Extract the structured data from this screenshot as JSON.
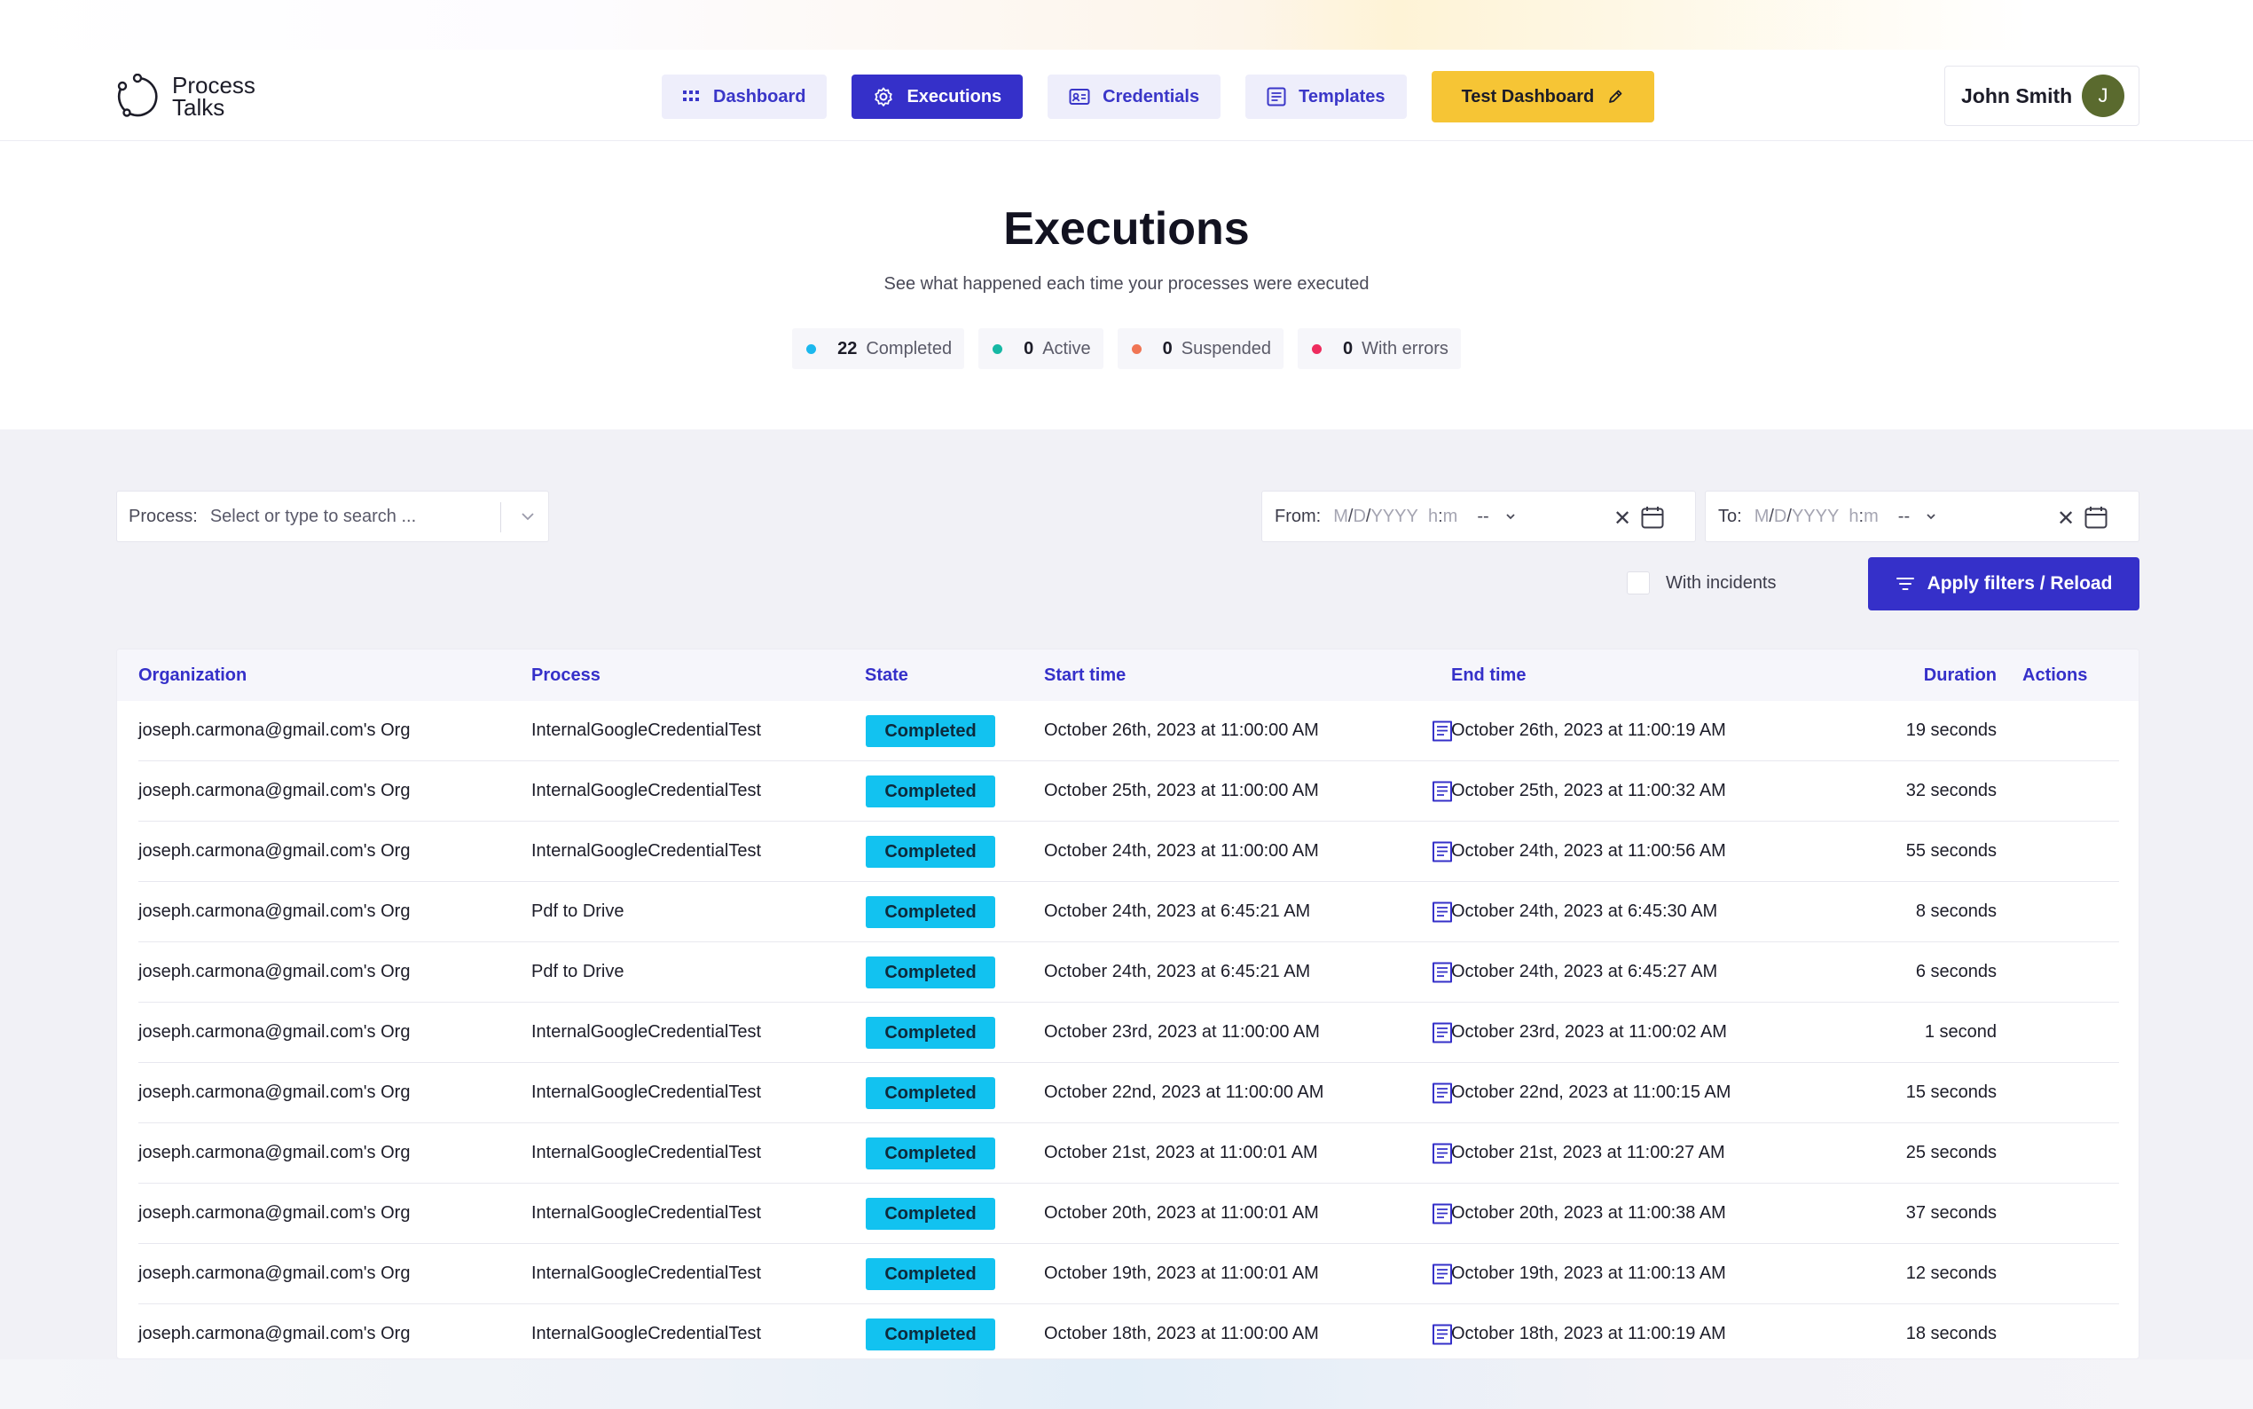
{
  "brand": {
    "line1": "Process",
    "line2": "Talks"
  },
  "nav": {
    "dashboard": "Dashboard",
    "executions": "Executions",
    "credentials": "Credentials",
    "templates": "Templates",
    "test_dashboard": "Test Dashboard"
  },
  "user": {
    "name": "John Smith",
    "initial": "J"
  },
  "page": {
    "title": "Executions",
    "subtitle": "See what happened each time your processes were executed"
  },
  "stats": [
    {
      "count": "22",
      "label": "Completed",
      "color": "#1bb8ee"
    },
    {
      "count": "0",
      "label": "Active",
      "color": "#16b8a4"
    },
    {
      "count": "0",
      "label": "Suspended",
      "color": "#f07554"
    },
    {
      "count": "0",
      "label": "With errors",
      "color": "#ee2c5e"
    }
  ],
  "filters": {
    "process_label": "Process:",
    "process_placeholder": "Select or type to search ...",
    "from_label": "From:",
    "to_label": "To:",
    "date_format": {
      "m": "M",
      "d": "D",
      "y": "YYYY",
      "h": "h",
      "min": "m",
      "sep": "/",
      "colon": ":"
    },
    "ampm": "--",
    "with_incidents": "With incidents",
    "apply": "Apply filters / Reload"
  },
  "table": {
    "headers": {
      "organization": "Organization",
      "process": "Process",
      "state": "State",
      "start": "Start time",
      "end": "End time",
      "duration": "Duration",
      "actions": "Actions"
    },
    "rows": [
      {
        "org": "joseph.carmona@gmail.com's Org",
        "process": "InternalGoogleCredentialTest",
        "state": "Completed",
        "start": "October 26th, 2023 at 11:00:00 AM",
        "end": "October 26th, 2023 at 11:00:19 AM",
        "duration": "19 seconds"
      },
      {
        "org": "joseph.carmona@gmail.com's Org",
        "process": "InternalGoogleCredentialTest",
        "state": "Completed",
        "start": "October 25th, 2023 at 11:00:00 AM",
        "end": "October 25th, 2023 at 11:00:32 AM",
        "duration": "32 seconds"
      },
      {
        "org": "joseph.carmona@gmail.com's Org",
        "process": "InternalGoogleCredentialTest",
        "state": "Completed",
        "start": "October 24th, 2023 at 11:00:00 AM",
        "end": "October 24th, 2023 at 11:00:56 AM",
        "duration": "55 seconds"
      },
      {
        "org": "joseph.carmona@gmail.com's Org",
        "process": "Pdf to Drive",
        "state": "Completed",
        "start": "October 24th, 2023 at 6:45:21 AM",
        "end": "October 24th, 2023 at 6:45:30 AM",
        "duration": "8 seconds"
      },
      {
        "org": "joseph.carmona@gmail.com's Org",
        "process": "Pdf to Drive",
        "state": "Completed",
        "start": "October 24th, 2023 at 6:45:21 AM",
        "end": "October 24th, 2023 at 6:45:27 AM",
        "duration": "6 seconds"
      },
      {
        "org": "joseph.carmona@gmail.com's Org",
        "process": "InternalGoogleCredentialTest",
        "state": "Completed",
        "start": "October 23rd, 2023 at 11:00:00 AM",
        "end": "October 23rd, 2023 at 11:00:02 AM",
        "duration": "1 second"
      },
      {
        "org": "joseph.carmona@gmail.com's Org",
        "process": "InternalGoogleCredentialTest",
        "state": "Completed",
        "start": "October 22nd, 2023 at 11:00:00 AM",
        "end": "October 22nd, 2023 at 11:00:15 AM",
        "duration": "15 seconds"
      },
      {
        "org": "joseph.carmona@gmail.com's Org",
        "process": "InternalGoogleCredentialTest",
        "state": "Completed",
        "start": "October 21st, 2023 at 11:00:01 AM",
        "end": "October 21st, 2023 at 11:00:27 AM",
        "duration": "25 seconds"
      },
      {
        "org": "joseph.carmona@gmail.com's Org",
        "process": "InternalGoogleCredentialTest",
        "state": "Completed",
        "start": "October 20th, 2023 at 11:00:01 AM",
        "end": "October 20th, 2023 at 11:00:38 AM",
        "duration": "37 seconds"
      },
      {
        "org": "joseph.carmona@gmail.com's Org",
        "process": "InternalGoogleCredentialTest",
        "state": "Completed",
        "start": "October 19th, 2023 at 11:00:01 AM",
        "end": "October 19th, 2023 at 11:00:13 AM",
        "duration": "12 seconds"
      },
      {
        "org": "joseph.carmona@gmail.com's Org",
        "process": "InternalGoogleCredentialTest",
        "state": "Completed",
        "start": "October 18th, 2023 at 11:00:00 AM",
        "end": "October 18th, 2023 at 11:00:19 AM",
        "duration": "18 seconds"
      }
    ]
  },
  "colors": {
    "primary": "#3530c9",
    "accent": "#f6c535",
    "completed": "#12c2f0"
  }
}
